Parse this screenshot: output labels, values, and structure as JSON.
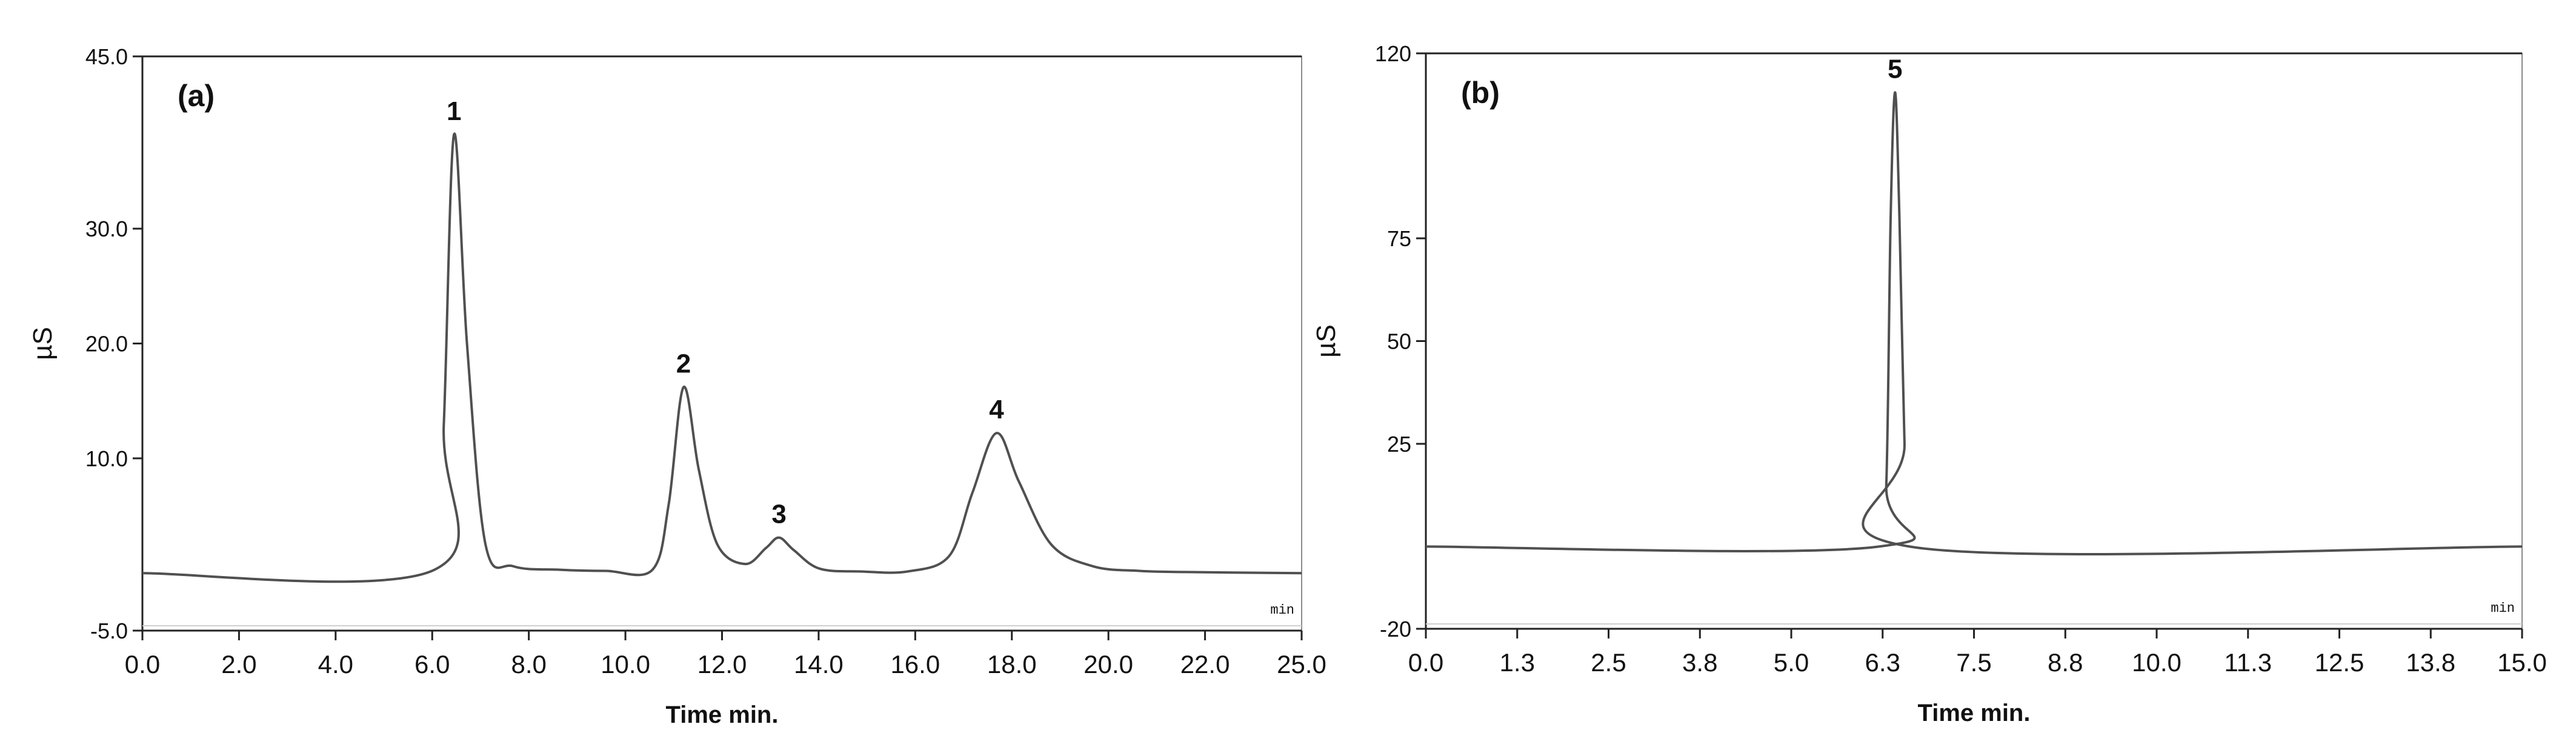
{
  "chart_data": [
    {
      "type": "line",
      "panel_label": "(a)",
      "xlabel": "Time min.",
      "ylabel": "µS",
      "unit_tag": "min",
      "xlim": [
        0,
        25
      ],
      "ylim": [
        -5,
        45
      ],
      "x_ticks": [
        "0.0",
        "2.0",
        "4.0",
        "6.0",
        "8.0",
        "10.0",
        "12.0",
        "14.0",
        "16.0",
        "18.0",
        "20.0",
        "22.0",
        "25.0"
      ],
      "y_ticks": [
        {
          "value": 45,
          "label": "45.0"
        },
        {
          "value": 30,
          "label": "30.0"
        },
        {
          "value": 20,
          "label": "20.0"
        },
        {
          "value": 10,
          "label": "10.0"
        },
        {
          "value": -5,
          "label": "-5.0"
        }
      ],
      "baseline": 0,
      "color": "#505050",
      "peaks": [
        {
          "label": "1",
          "time": 6.72,
          "height": 38.2
        },
        {
          "label": "2",
          "time": 11.67,
          "height": 16.2
        },
        {
          "label": "3",
          "time": 13.73,
          "height": 3.1
        },
        {
          "label": "4",
          "time": 18.42,
          "height": 12.2
        }
      ],
      "series": [
        {
          "x": [
            0.0,
            6.3,
            6.5,
            6.72,
            7.0,
            7.4,
            8.0,
            9.0,
            10.0,
            11.0,
            11.35,
            11.67,
            12.0,
            12.4,
            13.0,
            13.45,
            13.73,
            14.05,
            14.6,
            15.5,
            16.5,
            17.4,
            17.9,
            18.42,
            18.9,
            19.6,
            20.5,
            21.5,
            22.5,
            25.0
          ],
          "y": [
            0.0,
            0.3,
            13.0,
            38.2,
            20.0,
            2.5,
            0.6,
            0.3,
            0.2,
            0.3,
            6.0,
            16.2,
            9.0,
            2.5,
            0.8,
            2.2,
            3.1,
            2.0,
            0.4,
            0.15,
            0.15,
            1.5,
            7.0,
            12.2,
            8.0,
            2.5,
            0.6,
            0.2,
            0.1,
            0.0
          ]
        }
      ]
    },
    {
      "type": "line",
      "panel_label": "(b)",
      "xlabel": "Time min.",
      "ylabel": "µS",
      "unit_tag": "min",
      "xlim": [
        0,
        15
      ],
      "ylim": [
        -20,
        120
      ],
      "x_ticks": [
        "0.0",
        "1.3",
        "2.5",
        "3.8",
        "5.0",
        "6.3",
        "7.5",
        "8.8",
        "10.0",
        "11.3",
        "12.5",
        "13.8",
        "15.0"
      ],
      "y_ticks": [
        {
          "value": 120,
          "label": "120"
        },
        {
          "value": 75,
          "label": "75"
        },
        {
          "value": 50,
          "label": "50"
        },
        {
          "value": 25,
          "label": "25"
        },
        {
          "value": -20,
          "label": "-20"
        }
      ],
      "baseline": 0,
      "color": "#505050",
      "peaks": [
        {
          "label": "5",
          "time": 6.42,
          "height": 110.5
        }
      ],
      "series": [
        {
          "x": [
            0.0,
            6.2,
            6.3,
            6.36,
            6.42,
            6.48,
            6.55,
            6.62,
            15.0
          ],
          "y": [
            0.0,
            0.0,
            15.0,
            80.0,
            110.5,
            80.0,
            25.0,
            0.0,
            0.0
          ]
        }
      ]
    }
  ]
}
